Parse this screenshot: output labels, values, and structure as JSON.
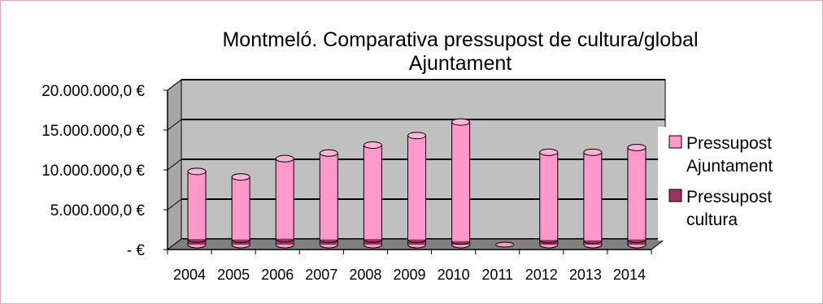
{
  "chart_data": {
    "type": "bar",
    "title_line1": "Montmeló. Comparativa pressupost de cultura/global",
    "title_line2": "Ajuntament",
    "categories": [
      "2004",
      "2005",
      "2006",
      "2007",
      "2008",
      "2009",
      "2010",
      "2011",
      "2012",
      "2013",
      "2014"
    ],
    "series": [
      {
        "name": "Pressupost Ajuntament",
        "color": "#ff99cc",
        "values": [
          9200000,
          8500000,
          10800000,
          11500000,
          12500000,
          13700000,
          15400000,
          0,
          11600000,
          11600000,
          12200000
        ]
      },
      {
        "name": "Pressupost cultura",
        "color": "#993366",
        "values": [
          700000,
          650000,
          750000,
          650000,
          700000,
          650000,
          450000,
          0,
          600000,
          550000,
          650000
        ]
      }
    ],
    "yticks": [
      {
        "value": 20000000,
        "label": "20.000.000,0 €"
      },
      {
        "value": 15000000,
        "label": "15.000.000,0 €"
      },
      {
        "value": 10000000,
        "label": "10.000.000,0 €"
      },
      {
        "value": 5000000,
        "label": "5.000.000,0 €"
      },
      {
        "value": 0,
        "label": "-   €"
      }
    ],
    "ylim": [
      0,
      20000000
    ],
    "grid": true,
    "legend_position": "right",
    "legend": [
      {
        "line1": "Pressupost",
        "line2": "Ajuntament",
        "color": "#ff99cc"
      },
      {
        "line1": "Pressupost",
        "line2": "cultura",
        "color": "#993366"
      }
    ],
    "wall_color": "#c0c0c0",
    "floor_color": "#808080"
  }
}
